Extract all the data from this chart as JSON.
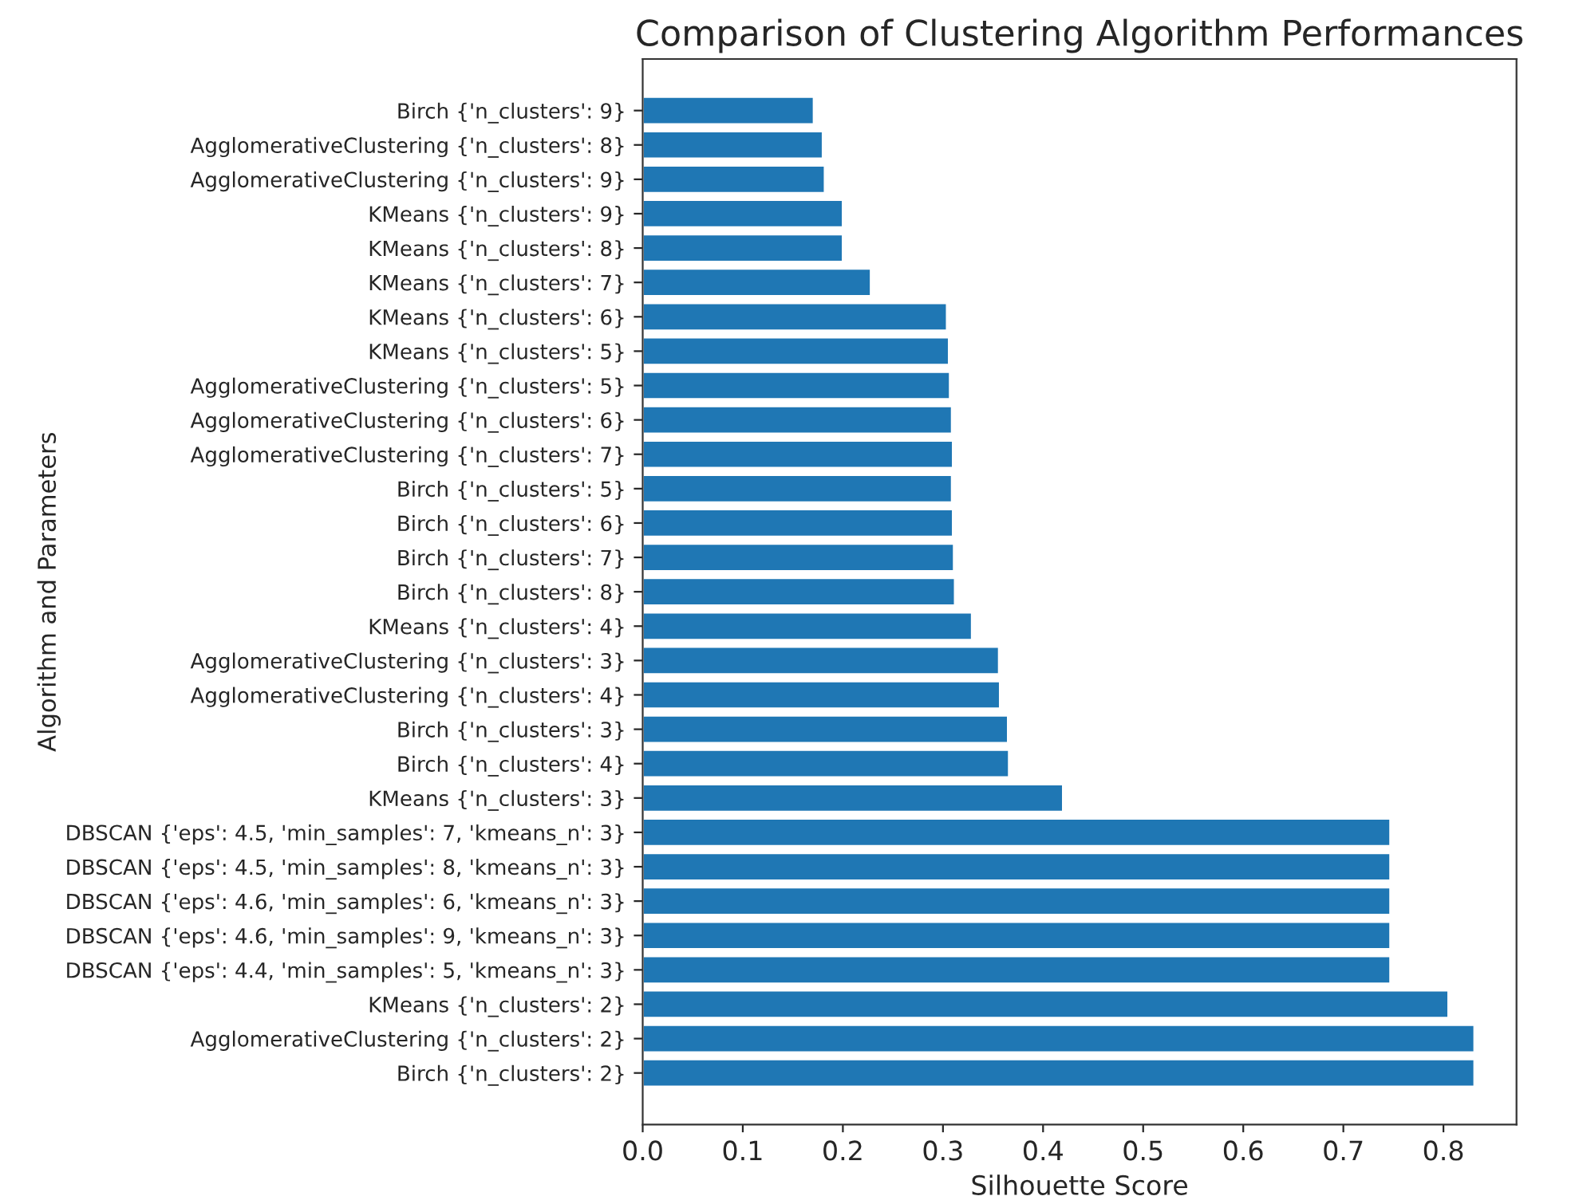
{
  "chart_data": {
    "type": "bar",
    "orientation": "horizontal",
    "title": "Comparison of Clustering Algorithm Performances",
    "xlabel": "Silhouette Score",
    "ylabel": "Algorithm and Parameters",
    "categories": [
      "Birch {'n_clusters': 9}",
      "AgglomerativeClustering {'n_clusters': 8}",
      "AgglomerativeClustering {'n_clusters': 9}",
      "KMeans {'n_clusters': 9}",
      "KMeans {'n_clusters': 8}",
      "KMeans {'n_clusters': 7}",
      "KMeans {'n_clusters': 6}",
      "KMeans {'n_clusters': 5}",
      "AgglomerativeClustering {'n_clusters': 5}",
      "AgglomerativeClustering {'n_clusters': 6}",
      "AgglomerativeClustering {'n_clusters': 7}",
      "Birch {'n_clusters': 5}",
      "Birch {'n_clusters': 6}",
      "Birch {'n_clusters': 7}",
      "Birch {'n_clusters': 8}",
      "KMeans {'n_clusters': 4}",
      "AgglomerativeClustering {'n_clusters': 3}",
      "AgglomerativeClustering {'n_clusters': 4}",
      "Birch {'n_clusters': 3}",
      "Birch {'n_clusters': 4}",
      "KMeans {'n_clusters': 3}",
      "DBSCAN {'eps': 4.5, 'min_samples': 7, 'kmeans_n': 3}",
      "DBSCAN {'eps': 4.5, 'min_samples': 8, 'kmeans_n': 3}",
      "DBSCAN {'eps': 4.6, 'min_samples': 6, 'kmeans_n': 3}",
      "DBSCAN {'eps': 4.6, 'min_samples': 9, 'kmeans_n': 3}",
      "DBSCAN {'eps': 4.4, 'min_samples': 5, 'kmeans_n': 3}",
      "KMeans {'n_clusters': 2}",
      "AgglomerativeClustering {'n_clusters': 2}",
      "Birch {'n_clusters': 2}"
    ],
    "values": [
      0.171,
      0.18,
      0.182,
      0.2,
      0.2,
      0.228,
      0.304,
      0.306,
      0.307,
      0.309,
      0.31,
      0.309,
      0.31,
      0.311,
      0.312,
      0.329,
      0.356,
      0.357,
      0.365,
      0.366,
      0.42,
      0.747,
      0.747,
      0.747,
      0.747,
      0.747,
      0.805,
      0.831,
      0.831
    ],
    "color": "#1f77b4",
    "xlim": [
      0,
      0.873
    ],
    "xticks": [
      {
        "value": 0,
        "label": "0.0"
      },
      0.1,
      0.2,
      0.3,
      0.4,
      0.5,
      0.6,
      0.7,
      0.8
    ],
    "grid": false
  }
}
